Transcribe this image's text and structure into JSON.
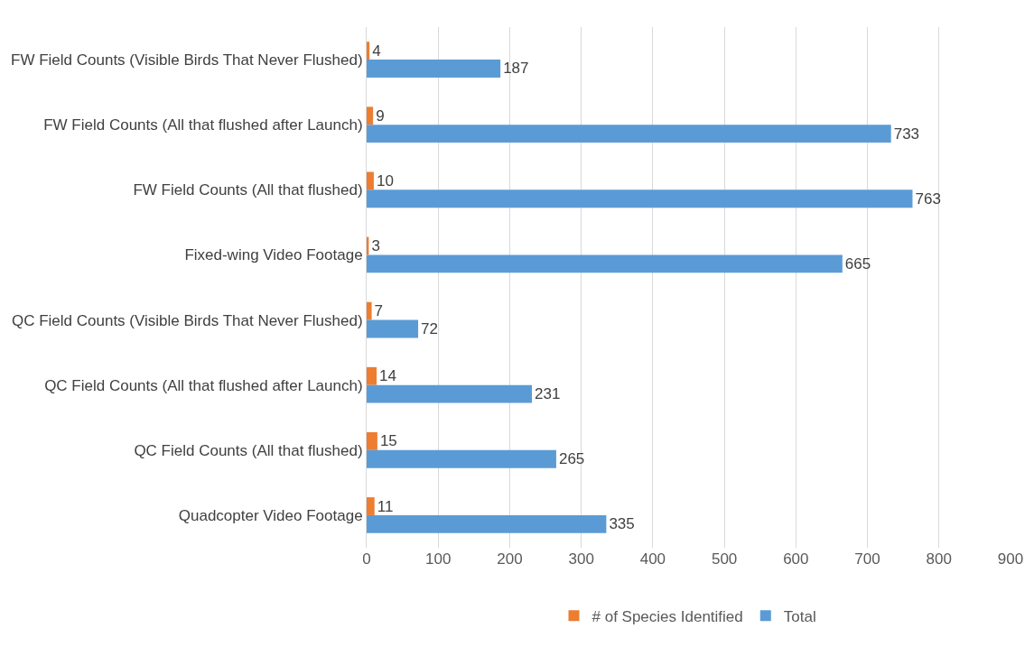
{
  "chart_data": {
    "type": "bar",
    "orientation": "horizontal",
    "categories": [
      "FW Field Counts (Visible Birds That Never Flushed)",
      "FW Field Counts (All that flushed after Launch)",
      "FW Field Counts (All that flushed)",
      "Fixed-wing Video Footage",
      "QC Field Counts (Visible Birds That Never Flushed)",
      "QC Field Counts (All that flushed after Launch)",
      "QC Field Counts (All that flushed)",
      "Quadcopter Video Footage"
    ],
    "series": [
      {
        "name": "# of Species Identified",
        "color": "#ed7d31",
        "values": [
          4,
          9,
          10,
          3,
          7,
          14,
          15,
          11
        ]
      },
      {
        "name": "Total",
        "color": "#5b9bd5",
        "values": [
          187,
          733,
          763,
          665,
          72,
          231,
          265,
          335
        ]
      }
    ],
    "xlim": [
      0,
      900
    ],
    "xticks": [
      0,
      100,
      200,
      300,
      400,
      500,
      600,
      700,
      800,
      900
    ],
    "grid": "x",
    "legend": "bottom",
    "data_labels": true
  }
}
